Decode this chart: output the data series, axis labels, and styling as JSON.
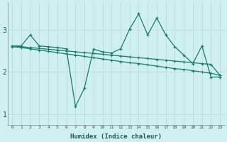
{
  "title": "",
  "xlabel": "Humidex (Indice chaleur)",
  "ylabel": "",
  "bg_color": "#cff0ee",
  "line_color": "#1a7a6e",
  "grid_color": "#b8e0dc",
  "x_data": [
    0,
    1,
    2,
    3,
    4,
    5,
    6,
    7,
    8,
    9,
    10,
    11,
    12,
    13,
    14,
    15,
    16,
    17,
    18,
    19,
    20,
    21,
    22,
    23
  ],
  "line1": [
    2.62,
    2.62,
    2.88,
    2.62,
    2.6,
    2.58,
    2.55,
    1.18,
    1.62,
    2.54,
    2.48,
    2.45,
    2.55,
    3.02,
    3.38,
    2.88,
    3.28,
    2.88,
    2.6,
    2.4,
    2.2,
    2.62,
    1.88,
    1.88
  ],
  "line2": [
    2.62,
    2.6,
    2.58,
    2.56,
    2.54,
    2.52,
    2.5,
    2.48,
    2.46,
    2.44,
    2.42,
    2.4,
    2.38,
    2.36,
    2.34,
    2.32,
    2.3,
    2.28,
    2.26,
    2.24,
    2.22,
    2.2,
    2.18,
    1.92
  ],
  "line3": [
    2.6,
    2.58,
    2.55,
    2.52,
    2.49,
    2.46,
    2.43,
    2.4,
    2.37,
    2.34,
    2.31,
    2.28,
    2.25,
    2.22,
    2.2,
    2.17,
    2.14,
    2.11,
    2.08,
    2.06,
    2.03,
    2.0,
    1.97,
    1.92
  ],
  "yticks": [
    1,
    2,
    3
  ],
  "xticks": [
    0,
    1,
    2,
    3,
    4,
    5,
    6,
    7,
    8,
    9,
    10,
    11,
    12,
    13,
    14,
    15,
    16,
    17,
    18,
    19,
    20,
    21,
    22,
    23
  ],
  "xlim": [
    -0.5,
    23.5
  ],
  "ylim": [
    0.75,
    3.65
  ]
}
